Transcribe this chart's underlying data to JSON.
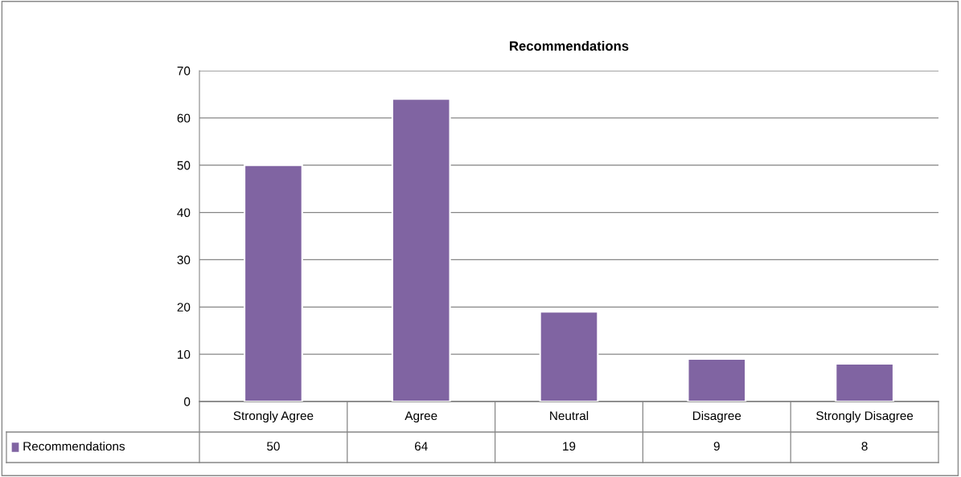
{
  "chart_data": {
    "type": "bar",
    "title": "Recommendations",
    "categories": [
      "Strongly Agree",
      "Agree",
      "Neutral",
      "Disagree",
      "Strongly Disagree"
    ],
    "series": [
      {
        "name": "Recommendations",
        "color": "#8064a2",
        "values": [
          50,
          64,
          19,
          9,
          8
        ]
      }
    ],
    "ylim": [
      0,
      70
    ],
    "yticks": [
      0,
      10,
      20,
      30,
      40,
      50,
      60,
      70
    ],
    "grid": "y",
    "data_labels": true,
    "legend": "bottom"
  }
}
